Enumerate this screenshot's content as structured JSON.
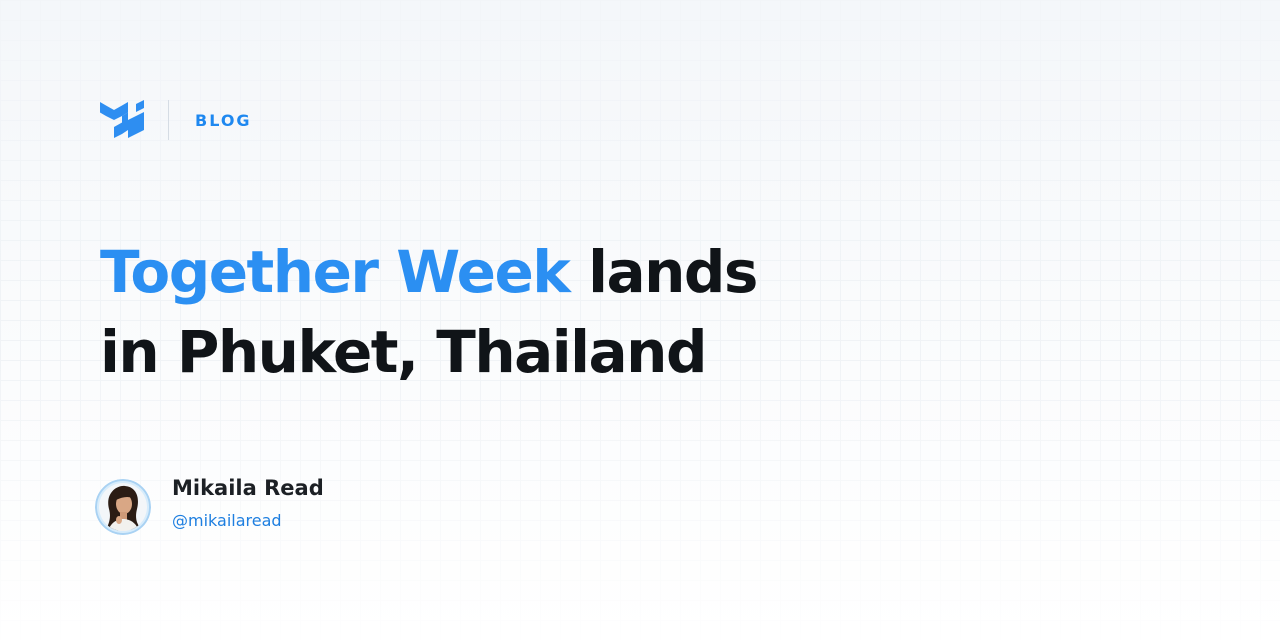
{
  "header": {
    "logo_icon": "mui-logo-icon",
    "section_label": "BLOG"
  },
  "title": {
    "highlight": "Together Week",
    "rest_line1": " lands",
    "line2": "in Phuket, Thailand"
  },
  "author": {
    "avatar_icon": "author-avatar",
    "name": "Mikaila Read",
    "handle": "@mikailaread"
  },
  "colors": {
    "accent": "#2b8ff2",
    "text": "#101418",
    "handle": "#1e7fe0",
    "background": "#f4f7fa"
  }
}
